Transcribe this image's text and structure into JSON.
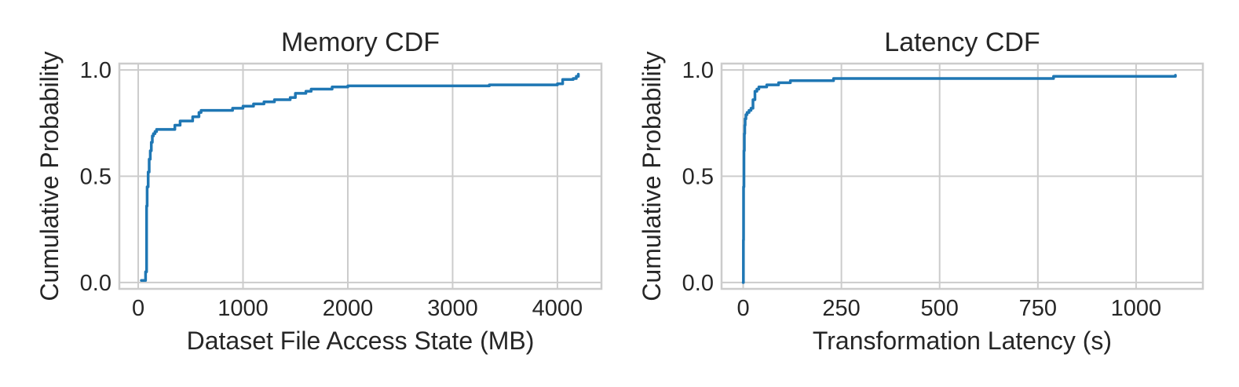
{
  "chart_data": [
    {
      "type": "line",
      "title": "Memory CDF",
      "xlabel": "Dataset File Access State (MB)",
      "ylabel": "Cumulative Probability",
      "xlim": [
        -180,
        4420
      ],
      "ylim": [
        -0.03,
        1.03
      ],
      "xticks": [
        0,
        1000,
        2000,
        3000,
        4000
      ],
      "xtick_labels": [
        "0",
        "1000",
        "2000",
        "3000",
        "4000"
      ],
      "yticks": [
        0.0,
        0.5,
        1.0
      ],
      "ytick_labels": [
        "0.0",
        "0.5",
        "1.0"
      ],
      "grid": true,
      "color": "#1f77b4",
      "series": [
        {
          "x": [
            30,
            60,
            70,
            80,
            85,
            95,
            105,
            115,
            125,
            135,
            145,
            160,
            175,
            250,
            350,
            400,
            520,
            580,
            600,
            900,
            1000,
            1100,
            1200,
            1300,
            1450,
            1500,
            1600,
            1650,
            1850,
            2000,
            2500,
            3000,
            3350,
            3500,
            4000,
            4050,
            4150,
            4180,
            4200
          ],
          "y": [
            0.01,
            0.01,
            0.05,
            0.36,
            0.45,
            0.52,
            0.58,
            0.62,
            0.66,
            0.69,
            0.7,
            0.71,
            0.72,
            0.72,
            0.74,
            0.76,
            0.78,
            0.8,
            0.81,
            0.82,
            0.83,
            0.84,
            0.85,
            0.86,
            0.87,
            0.89,
            0.9,
            0.91,
            0.92,
            0.925,
            0.925,
            0.925,
            0.93,
            0.93,
            0.935,
            0.955,
            0.96,
            0.97,
            0.98
          ]
        }
      ]
    },
    {
      "type": "line",
      "title": "Latency CDF",
      "xlabel": "Transformation Latency (s)",
      "ylabel": "Cumulative Probability",
      "xlim": [
        -55,
        1170
      ],
      "ylim": [
        -0.03,
        1.03
      ],
      "xticks": [
        0,
        250,
        500,
        750,
        1000
      ],
      "xtick_labels": [
        "0",
        "250",
        "500",
        "750",
        "1000"
      ],
      "yticks": [
        0.0,
        0.5,
        1.0
      ],
      "ytick_labels": [
        "0.0",
        "0.5",
        "1.0"
      ],
      "grid": true,
      "color": "#1f77b4",
      "series": [
        {
          "x": [
            0,
            0.5,
            1,
            2,
            3,
            4,
            5,
            7,
            10,
            15,
            20,
            25,
            30,
            35,
            40,
            60,
            90,
            120,
            200,
            230,
            500,
            775,
            790,
            1000,
            1100
          ],
          "y": [
            0.0,
            0.2,
            0.45,
            0.62,
            0.7,
            0.74,
            0.77,
            0.79,
            0.8,
            0.81,
            0.82,
            0.86,
            0.9,
            0.91,
            0.92,
            0.93,
            0.94,
            0.95,
            0.95,
            0.96,
            0.96,
            0.96,
            0.97,
            0.97,
            0.975
          ]
        }
      ]
    }
  ]
}
